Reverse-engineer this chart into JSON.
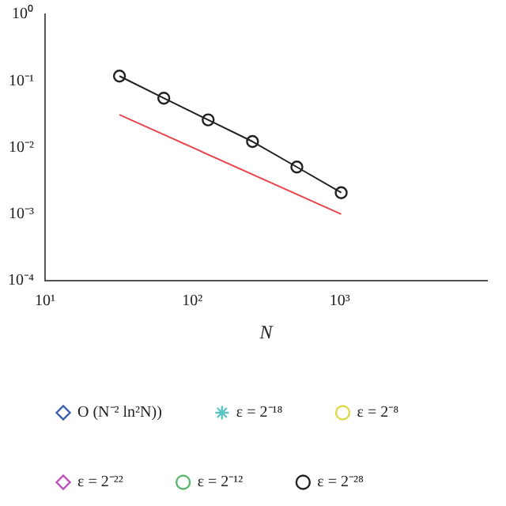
{
  "chart_data": {
    "type": "line",
    "xlabel": "N",
    "log": "xy",
    "grid": false,
    "legend": "bottom",
    "xlim": [
      10,
      10000
    ],
    "ylim": [
      0.0001,
      1
    ],
    "xticks": [
      {
        "value": 10,
        "label": "10¹"
      },
      {
        "value": 100,
        "label": "10²"
      },
      {
        "value": 1000,
        "label": "10³"
      }
    ],
    "yticks": [
      {
        "value": 0.0001,
        "label": "10⁻⁴"
      },
      {
        "value": 0.001,
        "label": "10⁻³"
      },
      {
        "value": 0.01,
        "label": "10⁻²"
      },
      {
        "value": 0.1,
        "label": "10⁻¹"
      },
      {
        "value": 1,
        "label": "10⁰"
      }
    ],
    "x": [
      32,
      64,
      128,
      256,
      512,
      1024
    ],
    "series": [
      {
        "color": "#e8474f",
        "marker": "none",
        "x": [
          32,
          1024
        ],
        "values": [
          0.031,
          0.001
        ]
      },
      {
        "name": "O (N⁻² ln²N))",
        "color": "#3b5fb0",
        "marker": "diamond",
        "values": [
          null,
          null,
          null,
          null,
          null,
          null
        ]
      },
      {
        "name": "ε = 2⁻⁸",
        "color": "#e0d84a",
        "marker": "circle",
        "values": [
          null,
          null,
          null,
          null,
          null,
          null
        ]
      },
      {
        "name": "ε = 2⁻¹²",
        "color": "#5cb870",
        "marker": "circle",
        "values": [
          null,
          null,
          null,
          null,
          null,
          null
        ]
      },
      {
        "name": "ε = 2⁻¹⁸",
        "color": "#5cc4c4",
        "marker": "star",
        "values": [
          null,
          null,
          null,
          null,
          null,
          null
        ]
      },
      {
        "name": "ε = 2⁻²²",
        "color": "#c04fc0",
        "marker": "diamond",
        "values": [
          null,
          null,
          null,
          null,
          null,
          null
        ]
      },
      {
        "name": "ε = 2⁻²⁸",
        "color": "#222222",
        "marker": "circle",
        "values": [
          0.118,
          0.055,
          0.026,
          0.0123,
          0.0051,
          0.0021
        ]
      }
    ]
  }
}
